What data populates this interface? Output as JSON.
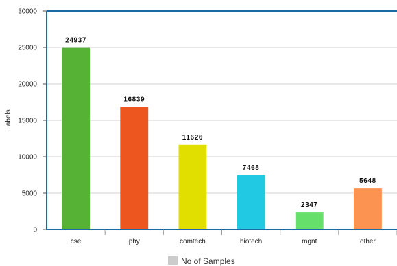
{
  "chart_data": {
    "type": "bar",
    "categories": [
      "cse",
      "phy",
      "comtech",
      "biotech",
      "mgnt",
      "other"
    ],
    "series": [
      {
        "name": "No of Samples",
        "values": [
          24937,
          16839,
          11626,
          7468,
          2347,
          5648
        ],
        "colors": [
          "#55b235",
          "#ee561f",
          "#e0df00",
          "#22c9e3",
          "#66e06a",
          "#fd9350"
        ]
      }
    ],
    "data_labels": [
      "24937",
      "16839",
      "11626",
      "7468",
      "2347",
      "5648"
    ],
    "title": "",
    "xlabel": "",
    "ylabel": "Labels",
    "ylim": [
      0,
      30000
    ],
    "yticks": [
      0,
      5000,
      10000,
      15000,
      20000,
      25000,
      30000
    ],
    "ytick_labels": [
      "0",
      "5000",
      "10000",
      "15000",
      "20000",
      "25000",
      "30000"
    ],
    "grid": true,
    "legend": {
      "position": "bottom-center",
      "entries": [
        {
          "label": "No of Samples",
          "color": "#cccccc"
        }
      ]
    },
    "axis_color": "#1a6aa8",
    "grid_color": "#d0d0d0"
  }
}
